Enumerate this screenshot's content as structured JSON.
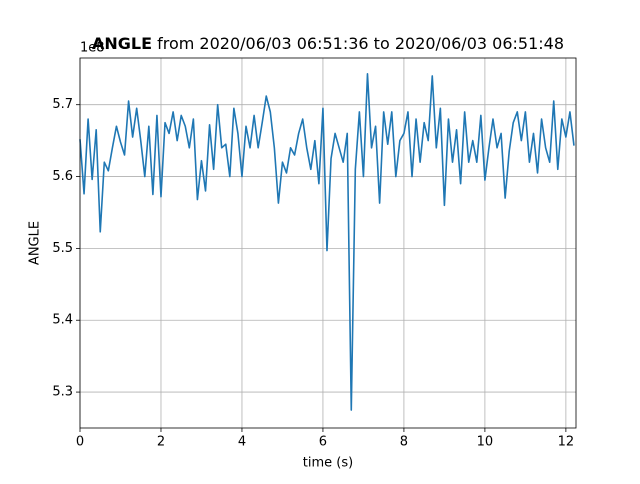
{
  "chart_data": {
    "type": "line",
    "title": "ANGLE",
    "title_suffix": "from 2020/06/03 06:51:36 to 2020/06/03 06:51:48",
    "x_label": "time (s)",
    "y_label": "ANGLE",
    "y_offset_label": "1e8",
    "x": [
      0,
      0.1,
      0.2,
      0.3,
      0.4,
      0.5,
      0.6,
      0.7,
      0.8,
      0.9,
      1,
      1.1,
      1.2,
      1.3,
      1.4,
      1.5,
      1.6,
      1.7,
      1.8,
      1.9,
      2,
      2.1,
      2.2,
      2.3,
      2.4,
      2.5,
      2.6,
      2.7,
      2.8,
      2.9,
      3,
      3.1,
      3.2,
      3.3,
      3.4,
      3.5,
      3.6,
      3.7,
      3.8,
      3.9,
      4,
      4.1,
      4.2,
      4.3,
      4.4,
      4.5,
      4.6,
      4.7,
      4.8,
      4.9,
      5,
      5.1,
      5.2,
      5.3,
      5.4,
      5.5,
      5.6,
      5.7,
      5.8,
      5.9,
      6,
      6.1,
      6.2,
      6.3,
      6.4,
      6.5,
      6.6,
      6.7,
      6.8,
      6.9,
      7,
      7.1,
      7.2,
      7.3,
      7.4,
      7.5,
      7.6,
      7.7,
      7.8,
      7.9,
      8,
      8.1,
      8.2,
      8.3,
      8.4,
      8.5,
      8.6,
      8.7,
      8.8,
      8.9,
      9,
      9.1,
      9.2,
      9.3,
      9.4,
      9.5,
      9.6,
      9.7,
      9.8,
      9.9,
      10,
      10.1,
      10.2,
      10.3,
      10.4,
      10.5,
      10.6,
      10.7,
      10.8,
      10.9,
      11,
      11.1,
      11.2,
      11.3,
      11.4,
      11.5,
      11.6,
      11.7,
      11.8,
      11.9,
      12,
      12.1,
      12.2
    ],
    "series": [
      {
        "name": "ANGLE",
        "color": "#1f77b4",
        "values": [
          5.652,
          5.576,
          5.68,
          5.596,
          5.665,
          5.523,
          5.62,
          5.608,
          5.64,
          5.67,
          5.648,
          5.63,
          5.705,
          5.655,
          5.695,
          5.65,
          5.6,
          5.67,
          5.575,
          5.685,
          5.572,
          5.675,
          5.66,
          5.69,
          5.65,
          5.685,
          5.67,
          5.64,
          5.68,
          5.568,
          5.622,
          5.58,
          5.672,
          5.61,
          5.7,
          5.64,
          5.645,
          5.6,
          5.695,
          5.66,
          5.6,
          5.67,
          5.64,
          5.685,
          5.64,
          5.675,
          5.712,
          5.69,
          5.64,
          5.563,
          5.62,
          5.605,
          5.64,
          5.63,
          5.66,
          5.68,
          5.64,
          5.61,
          5.65,
          5.59,
          5.695,
          5.497,
          5.625,
          5.66,
          5.64,
          5.62,
          5.66,
          5.275,
          5.61,
          5.69,
          5.6,
          5.743,
          5.64,
          5.67,
          5.563,
          5.69,
          5.645,
          5.69,
          5.6,
          5.65,
          5.66,
          5.69,
          5.6,
          5.68,
          5.62,
          5.675,
          5.65,
          5.74,
          5.64,
          5.695,
          5.56,
          5.68,
          5.62,
          5.665,
          5.59,
          5.69,
          5.62,
          5.65,
          5.62,
          5.685,
          5.595,
          5.64,
          5.68,
          5.64,
          5.66,
          5.57,
          5.635,
          5.675,
          5.69,
          5.65,
          5.69,
          5.62,
          5.66,
          5.605,
          5.68,
          5.64,
          5.62,
          5.705,
          5.61,
          5.68,
          5.655,
          5.69,
          5.643
        ]
      }
    ],
    "xlim": [
      0,
      12.25
    ],
    "xticks": [
      0,
      2,
      4,
      6,
      8,
      10,
      12
    ],
    "ylim": [
      5.25,
      5.765
    ],
    "yticks": [
      5.3,
      5.4,
      5.5,
      5.6,
      5.7
    ],
    "grid": true
  }
}
